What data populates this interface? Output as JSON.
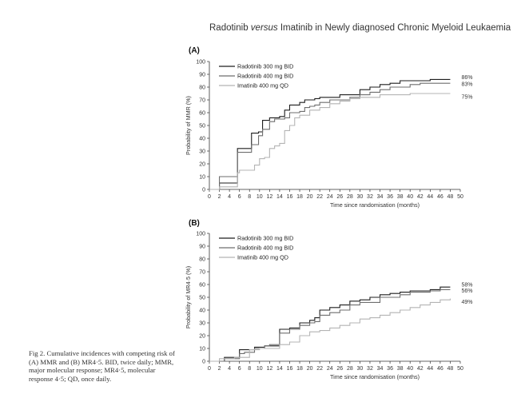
{
  "header": {
    "title_part1": "Radotinib ",
    "title_italic": "versus",
    "title_part2": " Imatinib in Newly diagnosed Chronic Myeloid Leukaemia"
  },
  "caption": {
    "label": "Fig 2.",
    "text": "Cumulative incidences with competing risk of (A) MMR and (B) MR4·5. BID, twice daily; MMR, major molecular response; MR4·5, molecular response 4·5; QD, once daily."
  },
  "colors": {
    "radotinib_300": "#1e1e1e",
    "radotinib_400": "#6e6e6e",
    "imatinib_400": "#b4b4b4",
    "axis": "#333333"
  },
  "chart_data": [
    {
      "panel": "(A)",
      "type": "line",
      "step": true,
      "ylabel": "Probability of MMR (%)",
      "xlabel": "Time since randomisation (months)",
      "xlim": [
        0,
        50
      ],
      "ylim": [
        0,
        100
      ],
      "xticks": [
        0,
        2,
        4,
        6,
        8,
        10,
        12,
        14,
        16,
        18,
        20,
        22,
        24,
        26,
        28,
        30,
        32,
        34,
        36,
        38,
        40,
        42,
        44,
        46,
        48,
        50
      ],
      "yticks": [
        0,
        10,
        20,
        30,
        40,
        50,
        60,
        70,
        80,
        90,
        100
      ],
      "legend": "top-left",
      "series": [
        {
          "name": "Radotinib 300 mg BID",
          "color_key": "radotinib_300",
          "end_label": "86%",
          "x": [
            0,
            2,
            5,
            5.6,
            8,
            8.4,
            9.8,
            10.6,
            12,
            13,
            14,
            15,
            16,
            18,
            19,
            20,
            21,
            22,
            24,
            26,
            28,
            30,
            32,
            34,
            36,
            38,
            40,
            42,
            44,
            46,
            48
          ],
          "y": [
            0,
            5,
            5,
            32,
            32,
            44,
            45,
            54,
            56,
            56,
            57,
            62,
            66,
            68,
            70,
            70,
            71,
            72,
            72,
            74,
            74,
            78,
            80,
            82,
            83,
            85,
            85,
            85,
            86,
            86,
            86
          ]
        },
        {
          "name": "Radotinib 400 mg BID",
          "color_key": "radotinib_400",
          "end_label": "83%",
          "x": [
            0,
            2,
            5,
            5.6,
            8,
            8.4,
            9.8,
            10.6,
            12,
            13,
            14,
            15,
            16,
            18,
            19,
            20,
            21,
            22,
            24,
            26,
            28,
            30,
            32,
            34,
            36,
            38,
            40,
            42,
            44,
            46,
            48
          ],
          "y": [
            0,
            10,
            10,
            29,
            29,
            35,
            42,
            47,
            53,
            55,
            55,
            56,
            60,
            61,
            64,
            65,
            66,
            68,
            70,
            70,
            72,
            74,
            76,
            78,
            80,
            80,
            82,
            83,
            83,
            83,
            83
          ]
        },
        {
          "name": "Imatinib 400 mg QD",
          "color_key": "imatinib_400",
          "end_label": "75%",
          "x": [
            0,
            2,
            5,
            5.6,
            6,
            8,
            9,
            10,
            11,
            12,
            13,
            14,
            15,
            16,
            17,
            18,
            20,
            21,
            22,
            24,
            26,
            28,
            30,
            32,
            34,
            36,
            38,
            40,
            42,
            44,
            46,
            48
          ],
          "y": [
            0,
            2,
            2,
            13,
            15,
            15,
            19,
            24,
            25,
            32,
            34,
            36,
            46,
            50,
            56,
            58,
            62,
            62,
            64,
            67,
            69,
            71,
            72,
            72,
            74,
            74,
            74,
            75,
            75,
            75,
            75,
            75
          ]
        }
      ]
    },
    {
      "panel": "(B)",
      "type": "line",
      "step": true,
      "ylabel": "Probability of MR4·5 (%)",
      "xlabel": "Time since randomisation (months)",
      "xlim": [
        0,
        50
      ],
      "ylim": [
        0,
        100
      ],
      "xticks": [
        0,
        2,
        4,
        6,
        8,
        10,
        12,
        14,
        16,
        18,
        20,
        22,
        24,
        26,
        28,
        30,
        32,
        34,
        36,
        38,
        40,
        42,
        44,
        46,
        48,
        50
      ],
      "yticks": [
        0,
        10,
        20,
        30,
        40,
        50,
        60,
        70,
        80,
        90,
        100
      ],
      "legend": "top-left",
      "series": [
        {
          "name": "Radotinib 300 mg BID",
          "color_key": "radotinib_300",
          "end_label": "58%",
          "x": [
            0,
            3,
            6,
            7,
            9,
            11,
            12,
            14,
            16,
            18,
            20,
            21,
            22,
            24,
            26,
            28,
            30,
            32,
            34,
            36,
            38,
            40,
            42,
            44,
            46,
            48
          ],
          "y": [
            0,
            3,
            9,
            9,
            11,
            12,
            12,
            25,
            26,
            30,
            32,
            34,
            40,
            42,
            44,
            47,
            48,
            50,
            52,
            53,
            54,
            55,
            55,
            56,
            58,
            58
          ]
        },
        {
          "name": "Radotinib 400 mg BID",
          "color_key": "radotinib_400",
          "end_label": "56%",
          "x": [
            0,
            3,
            6,
            7,
            9,
            11,
            12,
            14,
            16,
            18,
            20,
            21,
            22,
            24,
            26,
            28,
            30,
            32,
            34,
            36,
            38,
            40,
            42,
            44,
            46,
            48
          ],
          "y": [
            0,
            2,
            6,
            7,
            10,
            12,
            13,
            22,
            25,
            28,
            30,
            31,
            36,
            38,
            40,
            44,
            46,
            46,
            50,
            50,
            52,
            54,
            54,
            55,
            56,
            56
          ]
        },
        {
          "name": "Imatinib 400 mg QD",
          "color_key": "imatinib_400",
          "end_label": "49%",
          "x": [
            0,
            2,
            4,
            5,
            8,
            10,
            12,
            14,
            16,
            18,
            20,
            22,
            24,
            26,
            28,
            30,
            32,
            34,
            36,
            38,
            40,
            42,
            44,
            46,
            48
          ],
          "y": [
            0,
            2,
            2,
            3,
            9,
            10,
            10,
            13,
            15,
            20,
            23,
            24,
            26,
            28,
            30,
            33,
            34,
            36,
            38,
            40,
            42,
            44,
            46,
            48,
            49
          ]
        }
      ]
    }
  ]
}
